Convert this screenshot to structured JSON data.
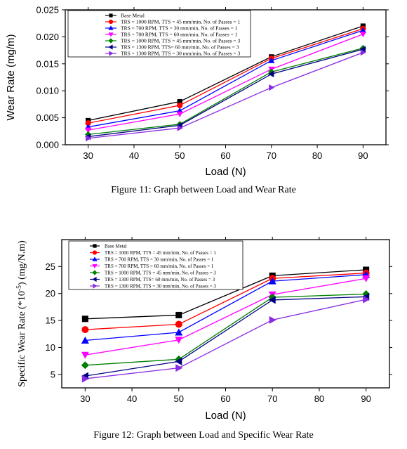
{
  "captions": {
    "fig11": "Figure 11: Graph between Load and Wear Rate",
    "fig12": "Figure 12: Graph between Load and Specific Wear Rate"
  },
  "chart_data": [
    {
      "type": "line",
      "xlabel": "Load (N)",
      "ylabel": "Wear Rate (mg/m)",
      "xlim": [
        25,
        95
      ],
      "ylim": [
        0,
        0.025
      ],
      "xticks": [
        "30",
        "40",
        "50",
        "60",
        "70",
        "80",
        "90"
      ],
      "yticks": [
        "0.000",
        "0.005",
        "0.010",
        "0.015",
        "0.020",
        "0.025"
      ],
      "legend_position": "top-left",
      "x": [
        30,
        50,
        70,
        90
      ],
      "series": [
        {
          "name": "Base Metal",
          "color": "#000000",
          "marker": "square",
          "values": [
            0.0045,
            0.008,
            0.0163,
            0.022
          ]
        },
        {
          "name": "TRS = 1000 RPM, TTS = 45 mm/min, No. of Passes = 1",
          "color": "#ff0000",
          "marker": "circle",
          "values": [
            0.004,
            0.0073,
            0.016,
            0.0215
          ]
        },
        {
          "name": "TRS = 700 RPM, TTS = 30 mm/min, No. of Passes = 1",
          "color": "#0000ff",
          "marker": "triangle-up",
          "values": [
            0.0033,
            0.0063,
            0.0156,
            0.0212
          ]
        },
        {
          "name": "TRS = 700 RPM, TTS = 60 mm/min, No. of Passes = 1",
          "color": "#ff00ff",
          "marker": "triangle-down",
          "values": [
            0.0027,
            0.0057,
            0.014,
            0.0205
          ]
        },
        {
          "name": "TRS = 1000 RPM, TTS = 45 mm/min, No. of Passes = 3",
          "color": "#008000",
          "marker": "diamond",
          "values": [
            0.0019,
            0.0038,
            0.0135,
            0.0179
          ]
        },
        {
          "name": "TRS = 1300 RPM, TTS= 60 mm/min, No. of Passes = 3",
          "color": "#000080",
          "marker": "triangle-left",
          "values": [
            0.0015,
            0.0036,
            0.0131,
            0.0177
          ]
        },
        {
          "name": "TRS = 1300 RPM, TTS = 30 mm/min, No. of Passes = 3",
          "color": "#8a2be2",
          "marker": "triangle-right",
          "values": [
            0.0012,
            0.0031,
            0.0106,
            0.0171
          ]
        }
      ]
    },
    {
      "type": "line",
      "xlabel": "Load (N)",
      "ylabel": "Specific Wear Rate (*10",
      "ylabel_sup": "-5",
      "ylabel_tail": ") (mg/N.m)",
      "xlim": [
        25,
        95
      ],
      "ylim": [
        2.5,
        30
      ],
      "xticks": [
        "30",
        "40",
        "50",
        "60",
        "70",
        "80",
        "90"
      ],
      "yticks": [
        "5",
        "10",
        "15",
        "20",
        "25"
      ],
      "legend_position": "top-left",
      "x": [
        30,
        50,
        70,
        90
      ],
      "series": [
        {
          "name": "Base Metal",
          "color": "#000000",
          "marker": "square",
          "values": [
            15.3,
            16.0,
            23.3,
            24.4
          ]
        },
        {
          "name": "TRS = 1000 RPM, TTS = 45 mm/min, No. of Passes = 1",
          "color": "#ff0000",
          "marker": "circle",
          "values": [
            13.3,
            14.3,
            22.8,
            23.8
          ]
        },
        {
          "name": "TRS = 700 RPM, TTS = 30 mm/min, No. of Passes = 1",
          "color": "#0000ff",
          "marker": "triangle-up",
          "values": [
            11.3,
            12.8,
            22.3,
            23.5
          ]
        },
        {
          "name": "TRS = 700 RPM, TTS = 60 mm/min, No. of Passes = 1",
          "color": "#ff00ff",
          "marker": "triangle-down",
          "values": [
            8.6,
            11.4,
            19.8,
            22.8
          ]
        },
        {
          "name": "TRS = 1000 RPM, TTS = 45 mm/min, No. of Passes = 3",
          "color": "#008000",
          "marker": "diamond",
          "values": [
            6.7,
            7.8,
            19.3,
            19.9
          ]
        },
        {
          "name": "TRS = 1300 RPM, TTS= 60 mm/min, No. of Passes = 3",
          "color": "#000080",
          "marker": "triangle-left",
          "values": [
            4.7,
            7.4,
            18.8,
            19.4
          ]
        },
        {
          "name": "TRS = 1300 RPM, TTS = 30 mm/min, No. of Passes = 3",
          "color": "#8a2be2",
          "marker": "triangle-right",
          "values": [
            4.2,
            6.2,
            15.1,
            18.9
          ]
        }
      ]
    }
  ]
}
